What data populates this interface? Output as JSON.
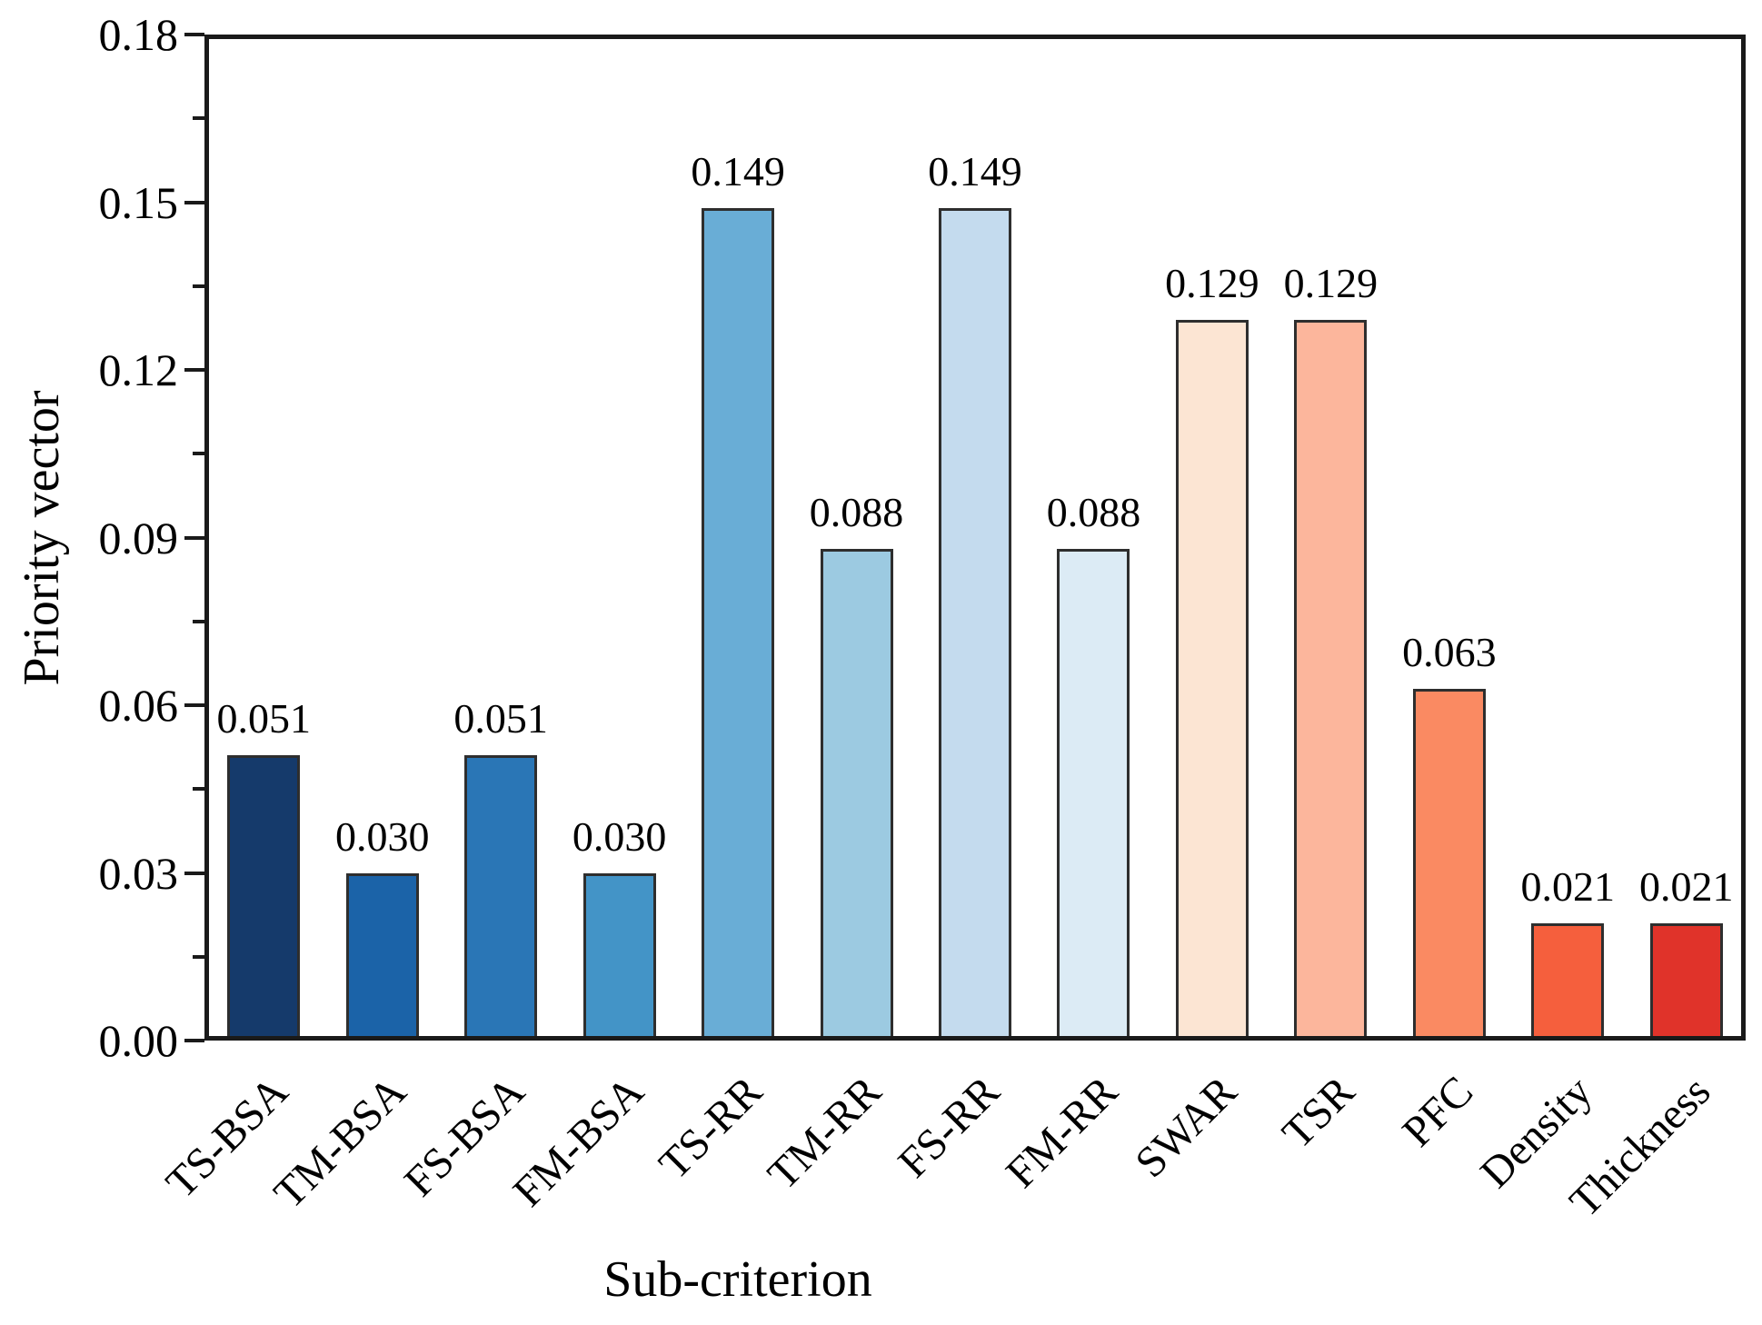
{
  "figure": {
    "background_color": "#ffffff",
    "axis_color": "#1a1a1a",
    "bar_edge_color": "#2e2e2e"
  },
  "chart_data": {
    "type": "bar",
    "title": "",
    "xlabel": "Sub-criterion",
    "ylabel": "Priority vector",
    "categories": [
      "TS-BSA",
      "TM-BSA",
      "FS-BSA",
      "FM-BSA",
      "TS-RR",
      "TM-RR",
      "FS-RR",
      "FM-RR",
      "SWAR",
      "TSR",
      "PFC",
      "Density",
      "Thickness"
    ],
    "values": [
      0.051,
      0.03,
      0.051,
      0.03,
      0.149,
      0.088,
      0.149,
      0.088,
      0.129,
      0.129,
      0.063,
      0.021,
      0.021
    ],
    "value_labels": [
      "0.051",
      "0.030",
      "0.051",
      "0.030",
      "0.149",
      "0.088",
      "0.149",
      "0.088",
      "0.129",
      "0.129",
      "0.063",
      "0.021",
      "0.021"
    ],
    "bar_colors": [
      "#153a6b",
      "#1b63a8",
      "#2a76b6",
      "#4394c7",
      "#69add6",
      "#9ccae1",
      "#c4dbee",
      "#dcebf5",
      "#fce5d3",
      "#fcb69c",
      "#fa8a62",
      "#f55f3d",
      "#e0332a"
    ],
    "ylim": [
      0,
      0.18
    ],
    "yticks": [
      0.0,
      0.03,
      0.06,
      0.09,
      0.12,
      0.15,
      0.18
    ],
    "ytick_labels": [
      "0.00",
      "0.03",
      "0.06",
      "0.09",
      "0.12",
      "0.15",
      "0.18"
    ],
    "minor_ytick_values": [
      0.015,
      0.045,
      0.075,
      0.105,
      0.135,
      0.165
    ],
    "grid": false,
    "legend": null,
    "x_tick_rotation_deg": 45
  }
}
